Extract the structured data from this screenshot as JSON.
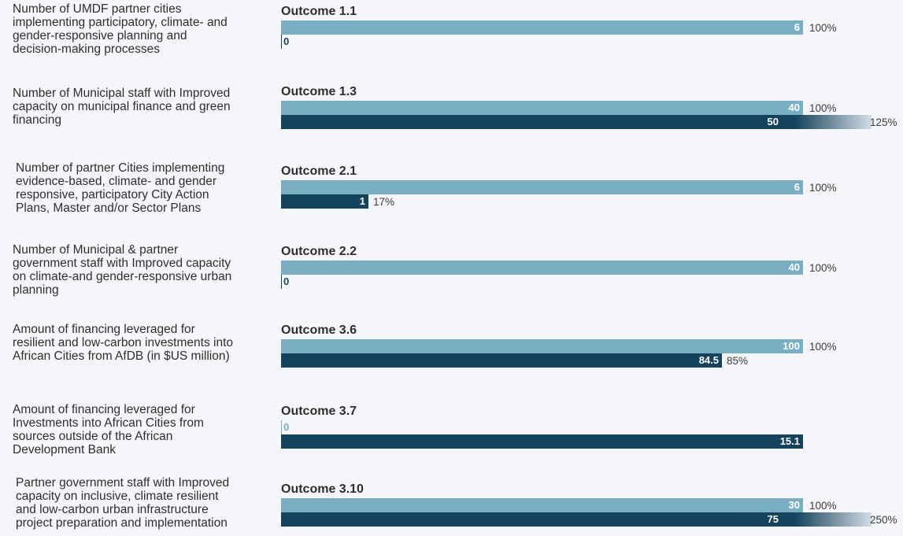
{
  "chart_data": {
    "type": "bar",
    "series": [
      {
        "role": "target"
      },
      {
        "role": "actual"
      }
    ],
    "outcomes": [
      {
        "title": "Outcome 1.1",
        "description": "Number of UMDF partner cities\nimplementing participatory, climate- and\ngender-responsive planning and\ndecision-making processes",
        "target": 6,
        "target_label": "6",
        "target_pct": "100%",
        "actual": 0,
        "actual_label": "0",
        "actual_pct": ""
      },
      {
        "title": "Outcome 1.3",
        "description": "Number of Municipal staff with Improved\ncapacity on municipal finance and green\nfinancing",
        "target": 40,
        "target_label": "40",
        "target_pct": "100%",
        "actual": 50,
        "actual_label": "50",
        "actual_pct": "125%"
      },
      {
        "title": "Outcome 2.1",
        "description": "Number of partner Cities implementing\nevidence-based, climate- and gender\nresponsive, participatory City Action\nPlans, Master and/or Sector Plans",
        "target": 6,
        "target_label": "6",
        "target_pct": "100%",
        "actual": 1,
        "actual_label": "1",
        "actual_pct": "17%"
      },
      {
        "title": "Outcome 2.2",
        "description": "Number of Municipal & partner\ngovernment staff with Improved capacity\non climate-and gender-responsive urban\nplanning",
        "target": 40,
        "target_label": "40",
        "target_pct": "100%",
        "actual": 0,
        "actual_label": "0",
        "actual_pct": ""
      },
      {
        "title": "Outcome 3.6",
        "description": "Amount of financing leveraged for\nresilient and low-carbon investments into\nAfrican Cities from AfDB (in $US million)",
        "target": 100,
        "target_label": "100",
        "target_pct": "100%",
        "actual": 84.5,
        "actual_label": "84.5",
        "actual_pct": "85%"
      },
      {
        "title": "Outcome 3.7",
        "description": "Amount of financing leveraged for\nInvestments into African Cities from\nsources outside of the African\nDevelopment Bank",
        "target": 0,
        "target_label": "0",
        "target_pct": "",
        "actual": 15.1,
        "actual_label": "15.1",
        "actual_pct": ""
      },
      {
        "title": "Outcome 3.10",
        "description": "Partner government staff with Improved\ncapacity on inclusive, climate resilient\nand low-carbon urban infrastructure\nproject preparation and implementation",
        "target": 30,
        "target_label": "30",
        "target_pct": "100%",
        "actual": 75,
        "actual_label": "75",
        "actual_pct": "250%"
      }
    ],
    "colors": {
      "target": "#79aec3",
      "actual": "#15425c",
      "background": "#f4f6f9",
      "text": "#2e2e2e"
    }
  }
}
